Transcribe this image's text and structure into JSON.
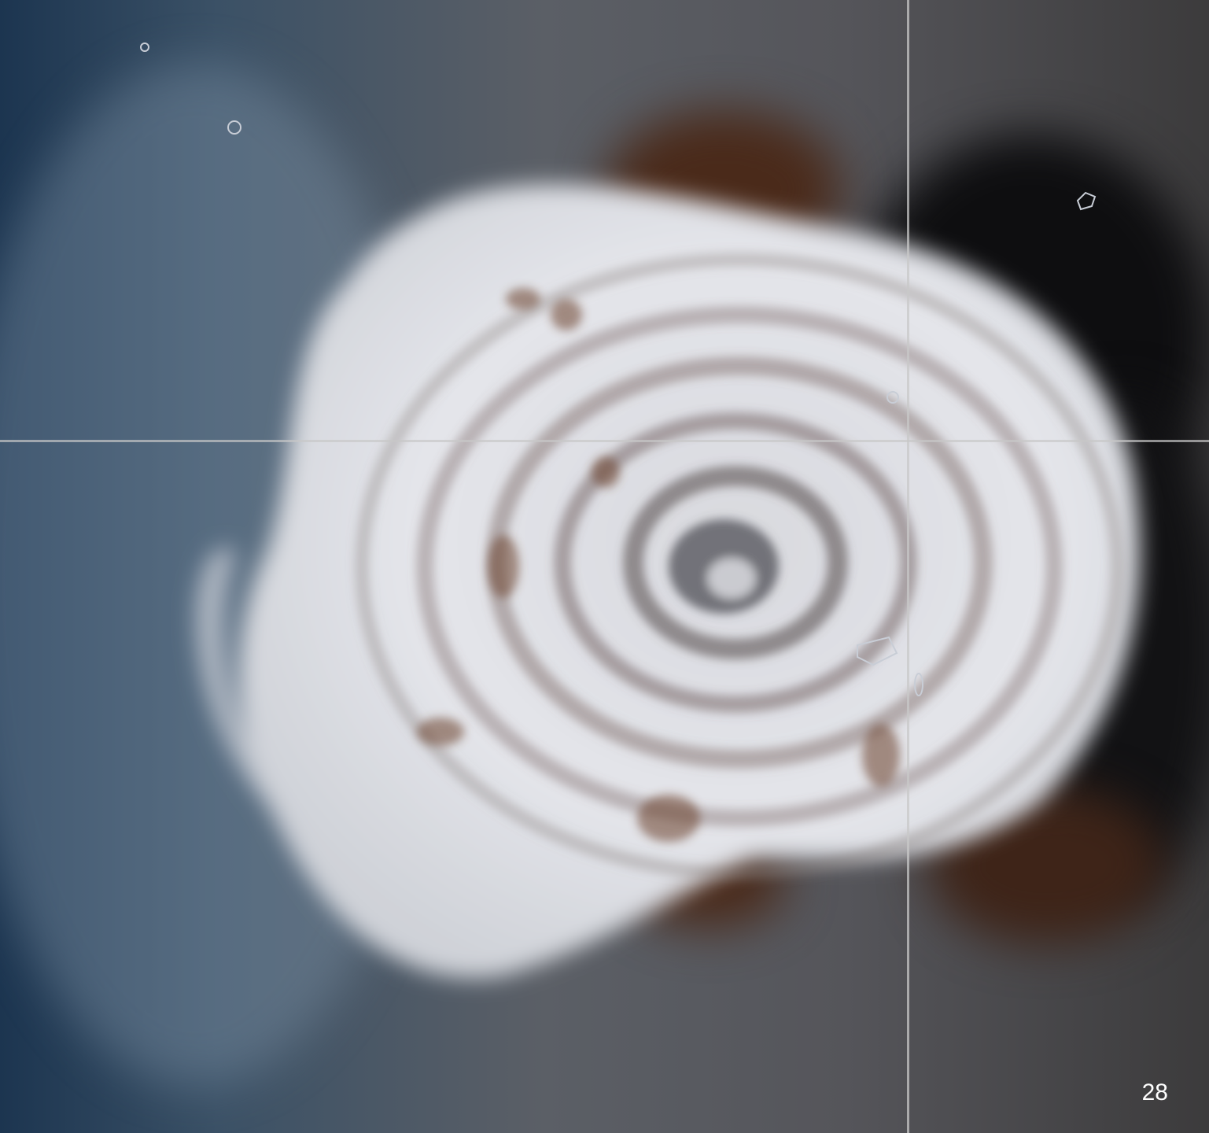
{
  "image": {
    "subject": "volcanic-eruption-plume",
    "colors": {
      "ocean_left": "#1c3550",
      "ocean_mid": "#5b5f66",
      "ocean_right": "#3c3b3c",
      "plume": "#e6e8ee",
      "ash_brown": "#4a2a1a",
      "ash_dark": "#0e0e10"
    }
  },
  "slide": {
    "number": "28"
  }
}
